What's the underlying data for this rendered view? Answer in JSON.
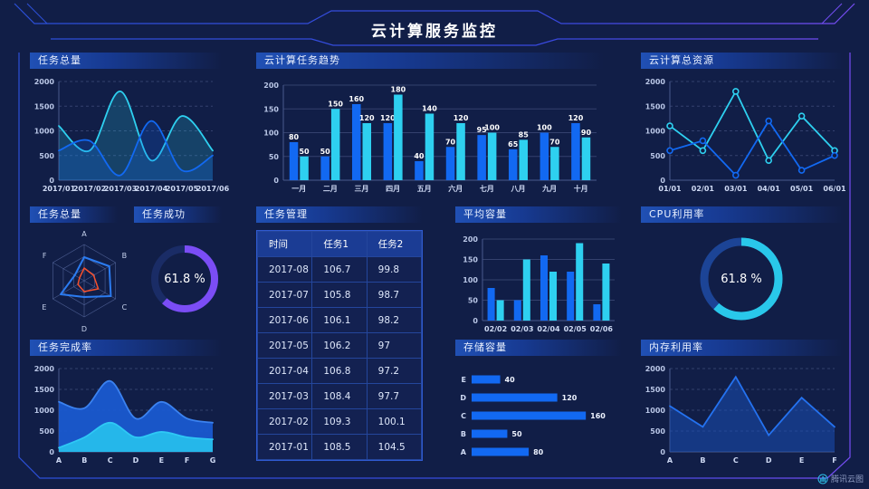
{
  "header": {
    "title": "云计算服务监控"
  },
  "brand": {
    "text": "腾讯云图"
  },
  "colors": {
    "background": "#111e47",
    "series_blue": "#1269f2",
    "series_cyan": "#2ed0f0",
    "donut_purple": "#7b4df5",
    "donut_cyan": "#29c8ea",
    "radar_blue": "#2b7bf0",
    "radar_red": "#f5502d",
    "frame_blue": "#2b50d8",
    "frame_purple": "#7a4df5"
  },
  "panels": {
    "taskTotalLine": {
      "title": "任务总量"
    },
    "taskTrend": {
      "title": "云计算任务趋势"
    },
    "cloudResources": {
      "title": "云计算总资源"
    },
    "taskRadar": {
      "title": "任务总量"
    },
    "taskSuccess": {
      "title": "任务成功"
    },
    "taskTable": {
      "title": "任务管理"
    },
    "avgCapacity": {
      "title": "平均容量"
    },
    "cpu": {
      "title": "CPU利用率"
    },
    "completion": {
      "title": "任务完成率"
    },
    "storage": {
      "title": "存储容量"
    },
    "memory": {
      "title": "内存利用率"
    }
  },
  "chart_data": [
    {
      "key": "taskTotalLine",
      "type": "area",
      "smooth": true,
      "area": true,
      "markers": false,
      "title": "任务总量",
      "categories": [
        "2017/01",
        "2017/02",
        "2017/03",
        "2017/04",
        "2017/05",
        "2017/06"
      ],
      "series": [
        {
          "name": "series-cyan",
          "color": "#2ed0f0",
          "fillOpacity": 0.2,
          "values": [
            1100,
            600,
            1800,
            400,
            1300,
            600
          ]
        },
        {
          "name": "series-blue",
          "color": "#1269f2",
          "fillOpacity": 0.22,
          "values": [
            600,
            800,
            100,
            1200,
            200,
            500
          ]
        }
      ],
      "ylim": [
        0,
        2000
      ],
      "yticks": [
        0,
        500,
        1000,
        1500,
        2000
      ],
      "grid": "dashed"
    },
    {
      "key": "taskTrendBars",
      "type": "bar",
      "bar_labels": true,
      "title": "云计算任务趋势",
      "categories": [
        "一月",
        "二月",
        "三月",
        "四月",
        "五月",
        "六月",
        "七月",
        "八月",
        "九月",
        "十月"
      ],
      "series": [
        {
          "name": "series-blue",
          "color": "#1269f2",
          "values": [
            80,
            50,
            160,
            120,
            40,
            70,
            95,
            65,
            100,
            120
          ]
        },
        {
          "name": "series-cyan",
          "color": "#2ed0f0",
          "values": [
            50,
            150,
            120,
            180,
            140,
            120,
            100,
            85,
            70,
            90
          ]
        }
      ],
      "ylim": [
        0,
        200
      ],
      "yticks": [
        0,
        50,
        100,
        150,
        200
      ],
      "grid": "solid"
    },
    {
      "key": "cloudResourcesLine",
      "type": "line",
      "smooth": false,
      "area": false,
      "markers": true,
      "title": "云计算总资源",
      "categories": [
        "01/01",
        "02/01",
        "03/01",
        "04/01",
        "05/01",
        "06/01"
      ],
      "series": [
        {
          "name": "series-cyan",
          "color": "#2ed0f0",
          "values": [
            1100,
            600,
            1800,
            400,
            1300,
            600
          ]
        },
        {
          "name": "series-blue",
          "color": "#1269f2",
          "values": [
            600,
            800,
            100,
            1200,
            200,
            500
          ]
        }
      ],
      "ylim": [
        0,
        2000
      ],
      "yticks": [
        0,
        500,
        1000,
        1500,
        2000
      ],
      "grid": "dashed"
    },
    {
      "key": "taskRadar",
      "type": "radar",
      "title": "任务总量",
      "axes": [
        "A",
        "B",
        "C",
        "D",
        "E",
        "F"
      ],
      "max": 100,
      "series": [
        {
          "name": "radar-blue",
          "color": "#2b7bf0",
          "width": 2,
          "values": [
            65,
            80,
            85,
            45,
            75,
            30
          ]
        },
        {
          "name": "radar-red",
          "color": "#f5502d",
          "width": 1.5,
          "values": [
            35,
            30,
            45,
            30,
            20,
            15
          ]
        }
      ]
    },
    {
      "key": "taskSuccessDonut",
      "type": "donut",
      "title": "任务成功",
      "value": 61.8,
      "label": "61.8 %",
      "color": "#7b4df5",
      "track": "#1a2c66",
      "cx": 56,
      "r": 33,
      "sw": 8
    },
    {
      "key": "taskTable",
      "type": "table",
      "title": "任务管理",
      "columns": [
        "时间",
        "任务1",
        "任务2"
      ],
      "rows": [
        [
          "2017-08",
          "106.7",
          "99.8"
        ],
        [
          "2017-07",
          "105.8",
          "98.7"
        ],
        [
          "2017-06",
          "106.1",
          "98.2"
        ],
        [
          "2017-05",
          "106.2",
          "97"
        ],
        [
          "2017-04",
          "106.8",
          "97.2"
        ],
        [
          "2017-03",
          "108.4",
          "97.7"
        ],
        [
          "2017-02",
          "109.3",
          "100.1"
        ],
        [
          "2017-01",
          "108.5",
          "104.5"
        ]
      ]
    },
    {
      "key": "avgCapacityBars",
      "type": "bar",
      "bar_labels": false,
      "title": "平均容量",
      "categories": [
        "02/02",
        "02/03",
        "02/04",
        "02/05",
        "02/06"
      ],
      "series": [
        {
          "name": "series-blue",
          "color": "#1269f2",
          "values": [
            80,
            50,
            160,
            120,
            40
          ]
        },
        {
          "name": "series-cyan",
          "color": "#2ed0f0",
          "values": [
            50,
            150,
            120,
            190,
            140
          ]
        }
      ],
      "ylim": [
        0,
        200
      ],
      "yticks": [
        0,
        50,
        100,
        150,
        200
      ],
      "grid": "solid"
    },
    {
      "key": "cpuDonut",
      "type": "donut",
      "title": "CPU利用率",
      "value": 61.8,
      "label": "61.8 %",
      "color": "#29c8ea",
      "track": "#1c4496",
      "cx": 111,
      "r": 41,
      "sw": 9
    },
    {
      "key": "completionArea",
      "type": "area",
      "smooth": true,
      "area": true,
      "markers": false,
      "title": "任务完成率",
      "categories": [
        "A",
        "B",
        "C",
        "D",
        "E",
        "F",
        "G"
      ],
      "series": [
        {
          "name": "area-blue",
          "color": "#1a5ad0",
          "stroke": "#3b82f0",
          "fillOpacity": 0.95,
          "values": [
            1200,
            1050,
            1700,
            800,
            1200,
            800,
            700
          ]
        },
        {
          "name": "area-cyan",
          "color": "#25b7ea",
          "stroke": "#2ec8f5",
          "fillOpacity": 1,
          "values": [
            100,
            350,
            700,
            350,
            480,
            350,
            300
          ]
        }
      ],
      "ylim": [
        0,
        2000
      ],
      "yticks": [
        0,
        500,
        1000,
        1500,
        2000
      ],
      "grid": "dashed"
    },
    {
      "key": "storageBars",
      "type": "hbar",
      "title": "存储容量",
      "categories": [
        "E",
        "D",
        "C",
        "B",
        "A"
      ],
      "values": [
        40,
        120,
        160,
        50,
        80
      ],
      "color": "#1269f2",
      "xmax": 175
    },
    {
      "key": "memoryLine",
      "type": "line",
      "smooth": false,
      "area": true,
      "markers": false,
      "title": "内存利用率",
      "categories": [
        "A",
        "B",
        "C",
        "D",
        "E",
        "F"
      ],
      "series": [
        {
          "name": "series-blue",
          "color": "#2472f0",
          "fill": "#1a4fb4",
          "fillOpacity": 0.55,
          "values": [
            1100,
            600,
            1800,
            400,
            1300,
            600
          ]
        }
      ],
      "ylim": [
        0,
        2000
      ],
      "yticks": [
        0,
        500,
        1000,
        1500,
        2000
      ],
      "grid": "dashed"
    }
  ]
}
